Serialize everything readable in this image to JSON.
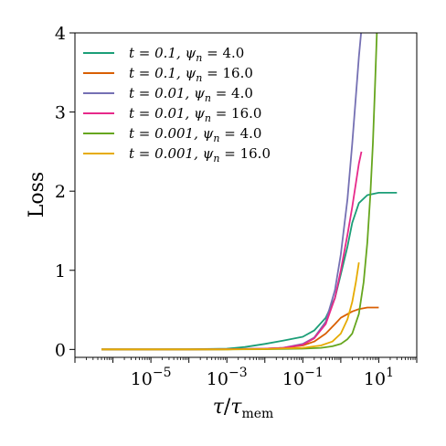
{
  "chart_data": {
    "type": "line",
    "xscale": "log",
    "xlim": [
      1e-07,
      100
    ],
    "ylim": [
      -0.1,
      4
    ],
    "xlabel": "τ/τmem",
    "ylabel": "Loss",
    "legend_position": "top-left",
    "grid": false,
    "x_ticks": [
      {
        "value": 1e-05,
        "base": "10",
        "exp": "−5"
      },
      {
        "value": 0.001,
        "base": "10",
        "exp": "−3"
      },
      {
        "value": 0.1,
        "base": "10",
        "exp": "−1"
      },
      {
        "value": 10,
        "base": "10",
        "exp": "1"
      }
    ],
    "y_ticks": [
      0,
      1,
      2,
      3,
      4
    ],
    "series": [
      {
        "label_t": "t = 0.1,",
        "label_psi": "ψ",
        "label_sub": "n",
        "label_val": " = 4.0",
        "color": "#1b9e77",
        "x": [
          5e-07,
          1e-05,
          0.0001,
          0.001,
          0.003,
          0.01,
          0.03,
          0.1,
          0.2,
          0.4,
          0.7,
          1.0,
          1.5,
          2,
          3,
          5,
          10,
          20,
          30
        ],
        "y": [
          0,
          0,
          0.002,
          0.01,
          0.03,
          0.07,
          0.11,
          0.16,
          0.24,
          0.4,
          0.65,
          0.95,
          1.3,
          1.6,
          1.85,
          1.95,
          1.98,
          1.98,
          1.98
        ]
      },
      {
        "label_t": "t = 0.1,",
        "label_psi": "ψ",
        "label_sub": "n",
        "label_val": " = 16.0",
        "color": "#d95f02",
        "x": [
          5e-07,
          0.0001,
          0.001,
          0.01,
          0.03,
          0.1,
          0.2,
          0.4,
          0.7,
          1,
          2,
          3,
          5,
          10
        ],
        "y": [
          0,
          0,
          0.003,
          0.01,
          0.02,
          0.05,
          0.1,
          0.2,
          0.32,
          0.4,
          0.48,
          0.51,
          0.53,
          0.53
        ]
      },
      {
        "label_t": "t = 0.01,",
        "label_psi": "ψ",
        "label_sub": "n",
        "label_val": " = 4.0",
        "color": "#7570b3",
        "x": [
          5e-07,
          0.0001,
          0.001,
          0.01,
          0.03,
          0.1,
          0.2,
          0.4,
          0.7,
          1,
          1.5,
          2,
          2.5,
          3,
          3.5
        ],
        "y": [
          0,
          0,
          0.003,
          0.01,
          0.02,
          0.07,
          0.15,
          0.35,
          0.75,
          1.2,
          1.9,
          2.6,
          3.2,
          3.7,
          4.05
        ]
      },
      {
        "label_t": "t = 0.01,",
        "label_psi": "ψ",
        "label_sub": "n",
        "label_val": " = 16.0",
        "color": "#e7298a",
        "x": [
          5e-07,
          0.0001,
          0.001,
          0.01,
          0.03,
          0.1,
          0.2,
          0.4,
          0.7,
          1,
          1.5,
          2,
          2.5,
          3,
          3.5
        ],
        "y": [
          0,
          0,
          0.003,
          0.01,
          0.02,
          0.06,
          0.14,
          0.32,
          0.65,
          1.0,
          1.45,
          1.8,
          2.1,
          2.35,
          2.5
        ]
      },
      {
        "label_t": "t = 0.001,",
        "label_psi": "ψ",
        "label_sub": "n",
        "label_val": " = 4.0",
        "color": "#66a61e",
        "x": [
          5e-07,
          0.0001,
          0.001,
          0.01,
          0.1,
          0.3,
          0.6,
          1,
          1.5,
          2,
          3,
          4,
          5,
          6,
          7,
          8,
          9
        ],
        "y": [
          0,
          0,
          0.001,
          0.003,
          0.01,
          0.02,
          0.04,
          0.07,
          0.13,
          0.2,
          0.45,
          0.85,
          1.35,
          1.95,
          2.6,
          3.35,
          4.05
        ]
      },
      {
        "label_t": "t = 0.001,",
        "label_psi": "ψ",
        "label_sub": "n",
        "label_val": " = 16.0",
        "color": "#e6ab02",
        "x": [
          5e-07,
          0.0001,
          0.001,
          0.01,
          0.1,
          0.3,
          0.6,
          1,
          1.5,
          2,
          2.5,
          3
        ],
        "y": [
          0,
          0,
          0.001,
          0.005,
          0.02,
          0.05,
          0.1,
          0.2,
          0.38,
          0.6,
          0.85,
          1.1
        ]
      }
    ]
  }
}
